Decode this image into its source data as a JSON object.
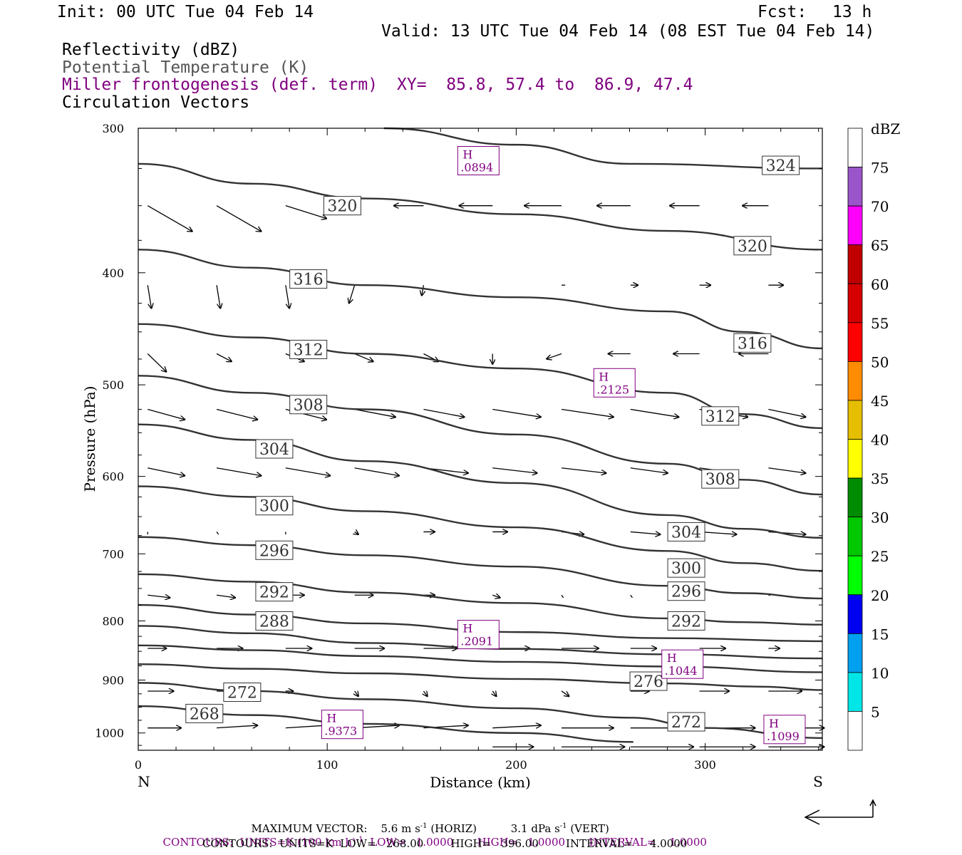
{
  "header": {
    "init": "Init: 00 UTC Tue 04 Feb 14",
    "fcst_label": "Fcst:",
    "fcst_value": "13 h",
    "valid": "Valid: 13 UTC Tue 04 Feb 14 (08 EST Tue 04 Feb 14)",
    "field1": "Reflectivity (dBZ)",
    "field2": "Potential Temperature (K)",
    "field3": "Miller frontogenesis (def. term)",
    "xy": "XY=  85.8, 57.4 to  86.9, 47.4",
    "field4": "Circulation Vectors"
  },
  "footer": {
    "max_vector_label": "MAXIMUM VECTOR:",
    "max_vector_h": "5.6 m s",
    "max_vector_h_sup": "-1",
    "max_vector_h_tag": "(HORIZ)",
    "max_vector_v": "3.1 dPa s",
    "max_vector_v_sup": "-1",
    "max_vector_v_tag": "(VERT)",
    "contours1_a": "CONTOURS:  UNITS=K (100 km h)",
    "contours1_sup": "-1",
    "contours1_b": "  LOW=   1.0000       HIGH=   1.0000       INTERVAL=    1.0000",
    "contours2": "CONTOURS:  UNITS=K  LOW=   268.00        HIGH=   396.00        INTERVAL=     4.0000"
  },
  "colorbar": {
    "title": "dBZ",
    "labels": [
      "5",
      "10",
      "15",
      "20",
      "25",
      "30",
      "35",
      "40",
      "45",
      "50",
      "55",
      "60",
      "65",
      "70",
      "75"
    ],
    "colors": [
      "#ffffff",
      "#00e6e6",
      "#00a0f0",
      "#0000f0",
      "#00ff00",
      "#00c800",
      "#008c00",
      "#ffff00",
      "#e6be00",
      "#ff8c00",
      "#ff0000",
      "#d60000",
      "#c00000",
      "#ff00ff",
      "#9955c9",
      "#ffffff"
    ]
  },
  "colors": {
    "contour": "#333333",
    "frontogenesis": "#800080",
    "vector": "#000000"
  },
  "chart_data": {
    "type": "cross-section",
    "xlabel": "Distance (km)",
    "ylabel": "Pressure (hPa)",
    "xlim": [
      0,
      362
    ],
    "ylim": [
      1035,
      300
    ],
    "y_scale": "log",
    "x_ticks": [
      "0",
      "100",
      "200",
      "300"
    ],
    "x_tick_values": [
      0,
      100,
      200,
      300
    ],
    "y_ticks": [
      "300",
      "400",
      "500",
      "600",
      "700",
      "800",
      "900",
      "1000"
    ],
    "y_tick_values": [
      300,
      400,
      500,
      600,
      700,
      800,
      900,
      1000
    ],
    "x_endpoints": [
      "N",
      "S"
    ],
    "theta_contours": [
      {
        "label": "324",
        "points": [
          [
            130,
            300
          ],
          [
            200,
            310
          ],
          [
            260,
            322
          ],
          [
            362,
            325
          ]
        ],
        "label_at": [
          340,
          323
        ]
      },
      {
        "label": "320",
        "points": [
          [
            0,
            322
          ],
          [
            60,
            335
          ],
          [
            120,
            345
          ],
          [
            200,
            356
          ],
          [
            280,
            368
          ],
          [
            362,
            382
          ]
        ],
        "label_at": [
          108,
          350
        ],
        "label2": "320",
        "label2_at": [
          325,
          379
        ]
      },
      {
        "label": "316",
        "points": [
          [
            0,
            382
          ],
          [
            60,
            396
          ],
          [
            120,
            410
          ],
          [
            200,
            420
          ],
          [
            280,
            432
          ],
          [
            320,
            450
          ],
          [
            362,
            465
          ]
        ],
        "label_at": [
          90,
          405
        ],
        "label2": "316",
        "label2_at": [
          325,
          460
        ]
      },
      {
        "label": "312",
        "points": [
          [
            0,
            443
          ],
          [
            60,
            455
          ],
          [
            120,
            470
          ],
          [
            200,
            484
          ],
          [
            280,
            508
          ],
          [
            320,
            530
          ],
          [
            362,
            545
          ]
        ],
        "label_at": [
          90,
          466
        ],
        "label2": "312",
        "label2_at": [
          308,
          532
        ]
      },
      {
        "label": "308",
        "points": [
          [
            0,
            491
          ],
          [
            60,
            508
          ],
          [
            120,
            525
          ],
          [
            200,
            552
          ],
          [
            280,
            585
          ],
          [
            320,
            604
          ],
          [
            362,
            622
          ]
        ],
        "label_at": [
          90,
          520
        ],
        "label2": "308",
        "label2_at": [
          308,
          603
        ]
      },
      {
        "label": "304",
        "points": [
          [
            0,
            541
          ],
          [
            60,
            558
          ],
          [
            120,
            582
          ],
          [
            200,
            608
          ],
          [
            280,
            648
          ],
          [
            320,
            666
          ],
          [
            362,
            678
          ]
        ],
        "label_at": [
          72,
          568
        ],
        "label2": "304",
        "label2_at": [
          290,
          670
        ]
      },
      {
        "label": "300",
        "points": [
          [
            0,
            612
          ],
          [
            60,
            625
          ],
          [
            120,
            643
          ],
          [
            200,
            664
          ],
          [
            280,
            696
          ],
          [
            320,
            713
          ],
          [
            362,
            724
          ]
        ],
        "label_at": [
          72,
          636
        ],
        "label2": "300",
        "label2_at": [
          290,
          720
        ]
      },
      {
        "label": "296",
        "points": [
          [
            0,
            677
          ],
          [
            60,
            688
          ],
          [
            120,
            702
          ],
          [
            200,
            718
          ],
          [
            280,
            746
          ],
          [
            320,
            757
          ],
          [
            362,
            765
          ]
        ],
        "label_at": [
          72,
          695
        ],
        "label2": "296",
        "label2_at": [
          290,
          754
        ]
      },
      {
        "label": "292",
        "points": [
          [
            0,
            729
          ],
          [
            60,
            740
          ],
          [
            120,
            756
          ],
          [
            200,
            772
          ],
          [
            280,
            796
          ],
          [
            320,
            802
          ],
          [
            362,
            806
          ]
        ],
        "label_at": [
          72,
          755
        ],
        "label2": "292",
        "label2_at": [
          290,
          800
        ]
      },
      {
        "label": "288",
        "points": [
          [
            0,
            775
          ],
          [
            60,
            790
          ],
          [
            120,
            804
          ],
          [
            200,
            818
          ],
          [
            280,
            828
          ],
          [
            362,
            833
          ]
        ],
        "label_at": [
          72,
          800
        ]
      },
      {
        "label": "",
        "points": [
          [
            0,
            808
          ],
          [
            60,
            820
          ],
          [
            120,
            836
          ],
          [
            200,
            846
          ],
          [
            280,
            855
          ],
          [
            362,
            862
          ]
        ]
      },
      {
        "label": "",
        "points": [
          [
            0,
            840
          ],
          [
            60,
            848
          ],
          [
            120,
            858
          ],
          [
            200,
            868
          ],
          [
            280,
            876
          ],
          [
            362,
            886
          ]
        ]
      },
      {
        "label": "276",
        "points": [
          [
            0,
            872
          ],
          [
            60,
            880
          ],
          [
            120,
            888
          ],
          [
            200,
            898
          ],
          [
            280,
            906
          ],
          [
            330,
            912
          ],
          [
            362,
            918
          ]
        ],
        "label_at": [
          270,
          902
        ]
      },
      {
        "label": "272",
        "points": [
          [
            0,
            905
          ],
          [
            60,
            920
          ],
          [
            120,
            935
          ],
          [
            200,
            952
          ],
          [
            260,
            970
          ],
          [
            300,
            990
          ],
          [
            362,
            1010
          ]
        ],
        "label_at": [
          55,
          922
        ],
        "label2": "272",
        "label2_at": [
          290,
          978
        ]
      },
      {
        "label": "268",
        "points": [
          [
            0,
            948
          ],
          [
            60,
            965
          ],
          [
            120,
            982
          ],
          [
            200,
            1000
          ],
          [
            262,
            1018
          ]
        ],
        "label_at": [
          35,
          962
        ]
      }
    ],
    "frontogenesis_maxima": [
      {
        "label": "H",
        "value": ".0894",
        "at": [
          180,
          320
        ]
      },
      {
        "label": "H",
        "value": ".2125",
        "at": [
          252,
          498
        ]
      },
      {
        "label": "H",
        "value": ".2091",
        "at": [
          180,
          822
        ]
      },
      {
        "label": "H",
        "value": ".1044",
        "at": [
          288,
          872
        ]
      },
      {
        "label": "H",
        "value": ".9373",
        "at": [
          108,
          983
        ]
      },
      {
        "label": "H",
        "value": ".1099",
        "at": [
          342,
          993
        ]
      }
    ]
  }
}
